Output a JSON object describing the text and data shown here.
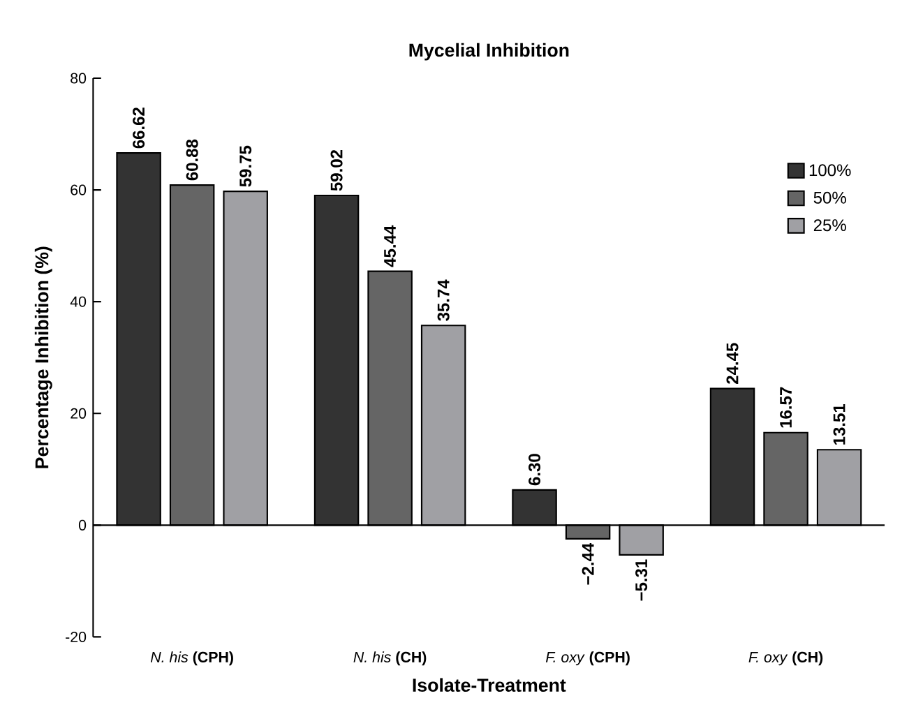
{
  "chart_data": {
    "type": "bar",
    "title": "Mycelial Inhibition",
    "xlabel": "Isolate-Treatment",
    "ylabel": "Percentage Inhibition (%)",
    "categories": [
      "*N. his* **(CPH)**",
      "*N. his* **(CH)**",
      "*F. oxy* **(CPH)**",
      "*F. oxy* **(CH)**"
    ],
    "series": [
      {
        "name": "100%",
        "color": "#333333",
        "values": [
          66.62,
          59.02,
          6.3,
          24.45
        ],
        "value_labels": [
          "66.62",
          "59.02",
          "6.30",
          "24.45"
        ]
      },
      {
        "name": "50%",
        "color": "#656565",
        "values": [
          60.88,
          45.44,
          -2.44,
          16.57
        ],
        "value_labels": [
          "60.88",
          "45.44",
          "−2.44",
          "16.57"
        ]
      },
      {
        "name": "25%",
        "color": "#a0a0a4",
        "values": [
          59.75,
          35.74,
          -5.31,
          13.51
        ],
        "value_labels": [
          "59.75",
          "35.74",
          "−5.31",
          "13.51"
        ]
      }
    ],
    "ylim": [
      -20,
      80
    ],
    "yticks": [
      -20,
      0,
      20,
      40,
      60,
      80
    ],
    "legend": "top right"
  }
}
